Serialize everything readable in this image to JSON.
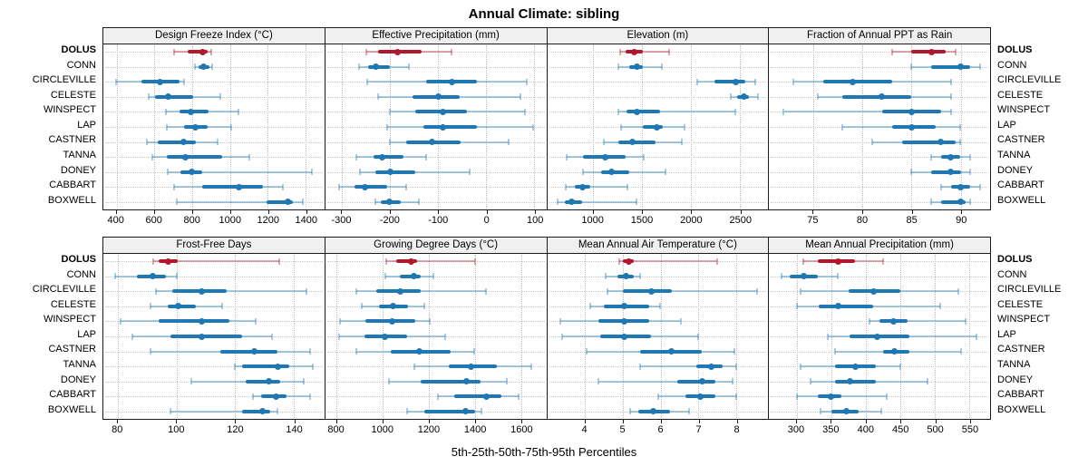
{
  "title": "Annual Climate: sibling",
  "caption": "5th-25th-50th-75th-95th Percentiles",
  "stations": [
    "DOLUS",
    "CONN",
    "CIRCLEVILLE",
    "CELESTE",
    "WINSPECT",
    "LAP",
    "CASTNER",
    "TANNA",
    "DONEY",
    "CABBART",
    "BOXWELL"
  ],
  "highlight_station": "DOLUS",
  "colors": {
    "highlight": "#b2182b",
    "highlight_light": "rgba(178,24,43,0.38)",
    "normal": "#1f78b4",
    "normal_light": "rgba(31,120,180,0.38)",
    "strip_bg": "#f0f0f0",
    "grid": "#c7c7c7"
  },
  "chart_data": [
    {
      "type": "dotplot-interval",
      "panel_title": "Design Freeze Index (°C)",
      "row": 1,
      "xlim": [
        330,
        1500
      ],
      "ticks": [
        400,
        600,
        800,
        1000,
        1200,
        1400
      ],
      "percentile_labels": [
        "5th",
        "25th",
        "50th",
        "75th",
        "95th"
      ],
      "values": [
        [
          705,
          775,
          855,
          880,
          900
        ],
        [
          815,
          835,
          860,
          890,
          905
        ],
        [
          395,
          530,
          630,
          735,
          755
        ],
        [
          570,
          605,
          675,
          805,
          950
        ],
        [
          660,
          735,
          795,
          885,
          1045
        ],
        [
          665,
          755,
          815,
          880,
          1005
        ],
        [
          560,
          620,
          755,
          820,
          935
        ],
        [
          590,
          665,
          765,
          960,
          1105
        ],
        [
          670,
          740,
          800,
          855,
          1435
        ],
        [
          705,
          855,
          1050,
          1175,
          1280
        ],
        [
          720,
          1195,
          1305,
          1335,
          1385
        ]
      ]
    },
    {
      "type": "dotplot-interval",
      "panel_title": "Effective Precipitation (mm)",
      "row": 1,
      "xlim": [
        -335,
        125
      ],
      "ticks": [
        -300,
        -200,
        -100,
        0,
        100
      ],
      "percentile_labels": [
        "5th",
        "25th",
        "50th",
        "75th",
        "95th"
      ],
      "values": [
        [
          -250,
          -225,
          -184,
          -135,
          -72
        ],
        [
          -265,
          -245,
          -230,
          -200,
          -160
        ],
        [
          -248,
          -125,
          -72,
          -19,
          84
        ],
        [
          -225,
          -153,
          -100,
          -56,
          72
        ],
        [
          -200,
          -147,
          -91,
          -41,
          81
        ],
        [
          -206,
          -131,
          -91,
          -19,
          97
        ],
        [
          -200,
          -166,
          -113,
          -53,
          47
        ],
        [
          -270,
          -234,
          -217,
          -172,
          -125
        ],
        [
          -263,
          -231,
          -200,
          -147,
          -34
        ],
        [
          -306,
          -275,
          -253,
          -206,
          -166
        ],
        [
          -231,
          -219,
          -202,
          -178,
          -140
        ]
      ]
    },
    {
      "type": "dotplot-interval",
      "panel_title": "Elevation (m)",
      "row": 1,
      "xlim": [
        530,
        2790
      ],
      "ticks": [
        1000,
        1500,
        2000,
        2500
      ],
      "percentile_labels": [
        "5th",
        "25th",
        "50th",
        "75th",
        "95th"
      ],
      "values": [
        [
          1280,
          1335,
          1420,
          1510,
          1780
        ],
        [
          1255,
          1365,
          1450,
          1510,
          1700
        ],
        [
          2065,
          2240,
          2460,
          2555,
          2660
        ],
        [
          2405,
          2475,
          2540,
          2595,
          2685
        ],
        [
          1255,
          1340,
          1450,
          1680,
          2450
        ],
        [
          1290,
          1510,
          1650,
          1715,
          1935
        ],
        [
          1110,
          1255,
          1400,
          1635,
          1905
        ],
        [
          730,
          900,
          1125,
          1330,
          1515
        ],
        [
          900,
          1080,
          1185,
          1365,
          1740
        ],
        [
          720,
          810,
          890,
          970,
          1350
        ],
        [
          640,
          715,
          780,
          890,
          1445
        ]
      ]
    },
    {
      "type": "dotplot-interval",
      "panel_title": "Fraction of Annual PPT as Rain",
      "row": 1,
      "xlim": [
        70.5,
        93
      ],
      "ticks": [
        75,
        80,
        85,
        90
      ],
      "percentile_labels": [
        "5th",
        "25th",
        "50th",
        "75th",
        "95th"
      ],
      "values": [
        [
          83,
          85,
          87,
          88.5,
          89.5
        ],
        [
          85,
          87,
          90,
          91,
          92
        ],
        [
          73,
          76,
          79,
          83,
          89
        ],
        [
          75.5,
          78,
          82,
          85,
          89
        ],
        [
          72,
          82,
          85,
          88,
          89
        ],
        [
          78,
          83,
          85,
          87.5,
          90
        ],
        [
          81,
          84,
          88,
          89.5,
          90
        ],
        [
          87,
          88,
          89,
          90,
          91
        ],
        [
          85,
          87,
          89,
          90,
          91
        ],
        [
          88,
          89,
          90,
          91,
          92
        ],
        [
          87,
          88,
          90,
          90.5,
          91
        ]
      ]
    },
    {
      "type": "dotplot-interval",
      "panel_title": "Frost-Free Days",
      "row": 2,
      "xlim": [
        75,
        150.5
      ],
      "ticks": [
        80,
        100,
        120,
        140
      ],
      "percentile_labels": [
        "5th",
        "25th",
        "50th",
        "75th",
        "95th"
      ],
      "values": [
        [
          92,
          94,
          97,
          100.5,
          135
        ],
        [
          79,
          86.5,
          92,
          96.5,
          100
        ],
        [
          93,
          98.5,
          108.5,
          117,
          144.5
        ],
        [
          91,
          97,
          100.5,
          106.5,
          115.5
        ],
        [
          81,
          94,
          108.5,
          118,
          127
        ],
        [
          85,
          98,
          108.5,
          122.5,
          132.5
        ],
        [
          91,
          115,
          126.5,
          134.5,
          145.5
        ],
        [
          120,
          122.5,
          134.5,
          138.5,
          146.5
        ],
        [
          105,
          123.5,
          131.5,
          135.5,
          143.5
        ],
        [
          126,
          129,
          134,
          137.5,
          145.5
        ],
        [
          98,
          122.5,
          129.5,
          132,
          134.5
        ]
      ]
    },
    {
      "type": "dotplot-interval",
      "panel_title": "Growing Degree Days (°C)",
      "row": 2,
      "xlim": [
        750,
        1710
      ],
      "ticks": [
        800,
        1000,
        1200,
        1400,
        1600
      ],
      "percentile_labels": [
        "5th",
        "25th",
        "50th",
        "75th",
        "95th"
      ],
      "values": [
        [
          1015,
          1060,
          1125,
          1150,
          1400
        ],
        [
          1010,
          1075,
          1135,
          1165,
          1220
        ],
        [
          885,
          970,
          1075,
          1165,
          1450
        ],
        [
          910,
          985,
          1045,
          1110,
          1180
        ],
        [
          813,
          926,
          1040,
          1140,
          1203
        ],
        [
          812,
          920,
          1010,
          1105,
          1270
        ],
        [
          885,
          1035,
          1160,
          1295,
          1395
        ],
        [
          1135,
          1285,
          1385,
          1495,
          1645
        ],
        [
          1025,
          1165,
          1365,
          1425,
          1540
        ],
        [
          1240,
          1310,
          1450,
          1515,
          1590
        ],
        [
          1105,
          1180,
          1360,
          1400,
          1430
        ]
      ]
    },
    {
      "type": "dotplot-interval",
      "panel_title": "Mean Annual Air Temperature (°C)",
      "row": 2,
      "xlim": [
        3.0,
        8.85
      ],
      "ticks": [
        4,
        5,
        6,
        7,
        8
      ],
      "percentile_labels": [
        "5th",
        "25th",
        "50th",
        "75th",
        "95th"
      ],
      "values": [
        [
          4.9,
          5.0,
          5.15,
          5.3,
          7.5
        ],
        [
          4.55,
          4.85,
          5.1,
          5.3,
          5.45
        ],
        [
          4.6,
          5.0,
          5.75,
          6.3,
          8.55
        ],
        [
          4.15,
          4.5,
          5.05,
          5.7,
          6.0
        ],
        [
          3.35,
          4.35,
          5.05,
          5.7,
          6.55
        ],
        [
          3.4,
          4.4,
          5.05,
          5.75,
          7.0
        ],
        [
          4.05,
          5.45,
          6.3,
          7.1,
          7.95
        ],
        [
          5.45,
          6.95,
          7.35,
          7.65,
          8.0
        ],
        [
          4.35,
          6.45,
          7.1,
          7.45,
          7.9
        ],
        [
          5.95,
          6.65,
          7.05,
          7.45,
          8.0
        ],
        [
          5.2,
          5.4,
          5.8,
          6.25,
          6.75
        ]
      ]
    },
    {
      "type": "dotplot-interval",
      "panel_title": "Mean Annual Precipitation (mm)",
      "row": 2,
      "xlim": [
        260,
        580
      ],
      "ticks": [
        300,
        350,
        400,
        450,
        500,
        550
      ],
      "percentile_labels": [
        "5th",
        "25th",
        "50th",
        "75th",
        "95th"
      ],
      "values": [
        [
          310,
          330,
          360,
          385,
          425
        ],
        [
          278,
          290,
          310,
          330,
          360
        ],
        [
          305,
          375,
          411,
          450,
          534
        ],
        [
          300,
          332,
          360,
          410,
          508
        ],
        [
          405,
          420,
          440,
          460,
          545
        ],
        [
          345,
          377,
          417,
          463,
          560
        ],
        [
          355,
          425,
          442,
          463,
          538
        ],
        [
          305,
          355,
          385,
          415,
          450
        ],
        [
          320,
          355,
          377,
          415,
          490
        ],
        [
          300,
          330,
          350,
          365,
          430
        ],
        [
          335,
          350,
          372,
          390,
          423
        ]
      ]
    }
  ]
}
